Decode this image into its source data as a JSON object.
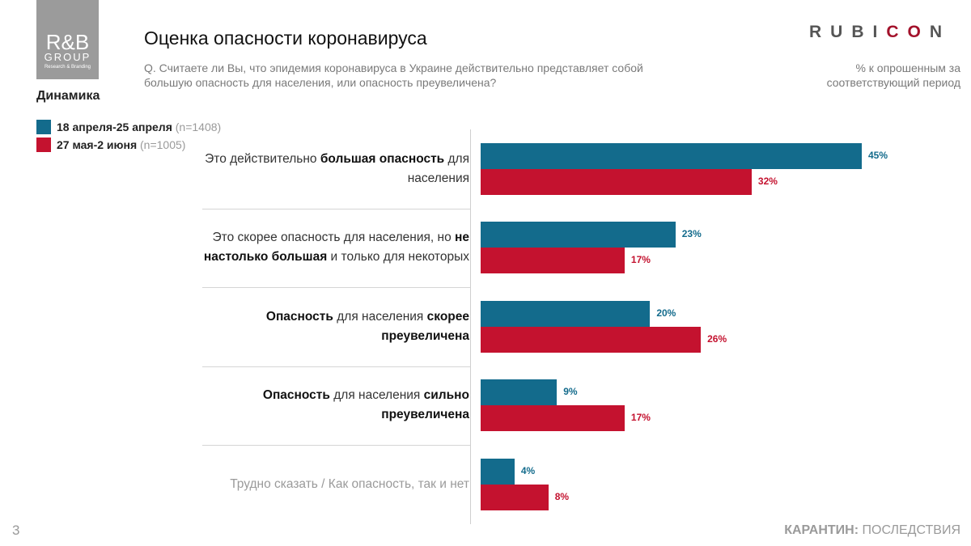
{
  "header": {
    "logo_left": {
      "line1": "R&B",
      "line2": "GROUP",
      "line3": "Research & Branding"
    },
    "title": "Оценка опасности коронавируса",
    "question": "Q. Считаете ли Вы, что эпидемия коронавируса в Украине действительно представляет собой большую опасность для населения, или опасность преувеличена?",
    "logo_right": [
      {
        "text": "RUBI",
        "color": "#555555"
      },
      {
        "text": "CO",
        "color": "#a3122b"
      },
      {
        "text": "N",
        "color": "#555555"
      }
    ],
    "note": "% к опрошенным за соответствующий период"
  },
  "section_label": "Динамика",
  "chart_data": {
    "type": "bar",
    "orientation": "horizontal",
    "categories": [
      [
        {
          "text": "Это действительно ",
          "bold": false
        },
        {
          "text": "большая опасность",
          "bold": true
        },
        {
          "text": " для населения",
          "bold": false
        }
      ],
      [
        {
          "text": "Это скорее опасность для населения, но ",
          "bold": false
        },
        {
          "text": "не настолько большая",
          "bold": true
        },
        {
          "text": " и только для некоторых",
          "bold": false
        }
      ],
      [
        {
          "text": "Опасность",
          "bold": true
        },
        {
          "text": " для населения ",
          "bold": false
        },
        {
          "text": "скорее преувеличена",
          "bold": true
        }
      ],
      [
        {
          "text": "Опасность",
          "bold": true
        },
        {
          "text": " для населения ",
          "bold": false
        },
        {
          "text": "сильно преувеличена",
          "bold": true
        }
      ],
      [
        {
          "text": "Трудно сказать / Как опасность, так и нет",
          "bold": false
        }
      ]
    ],
    "category_colors": [
      "#333333",
      "#333333",
      "#333333",
      "#333333",
      "#9a9a9a"
    ],
    "series": [
      {
        "name": "18 апреля-25 апреля",
        "sample": "(n=1408)",
        "color": "#136b8c",
        "values": [
          45,
          23,
          20,
          9,
          4
        ],
        "value_labels": [
          "45%",
          "23%",
          "20%",
          "9%",
          "4%"
        ]
      },
      {
        "name": "27 мая-2 июня",
        "sample": "(n=1005)",
        "color": "#c4122f",
        "values": [
          32,
          17,
          26,
          17,
          8
        ],
        "value_labels": [
          "32%",
          "17%",
          "26%",
          "17%",
          "8%"
        ]
      }
    ]
  },
  "footer": {
    "page": "3",
    "label": [
      {
        "text": "КАРАНТИН",
        "bold": true
      },
      {
        "text": ":",
        "bold": true
      },
      {
        "text": " ПОСЛЕДСТВИЯ",
        "bold": false
      }
    ]
  }
}
